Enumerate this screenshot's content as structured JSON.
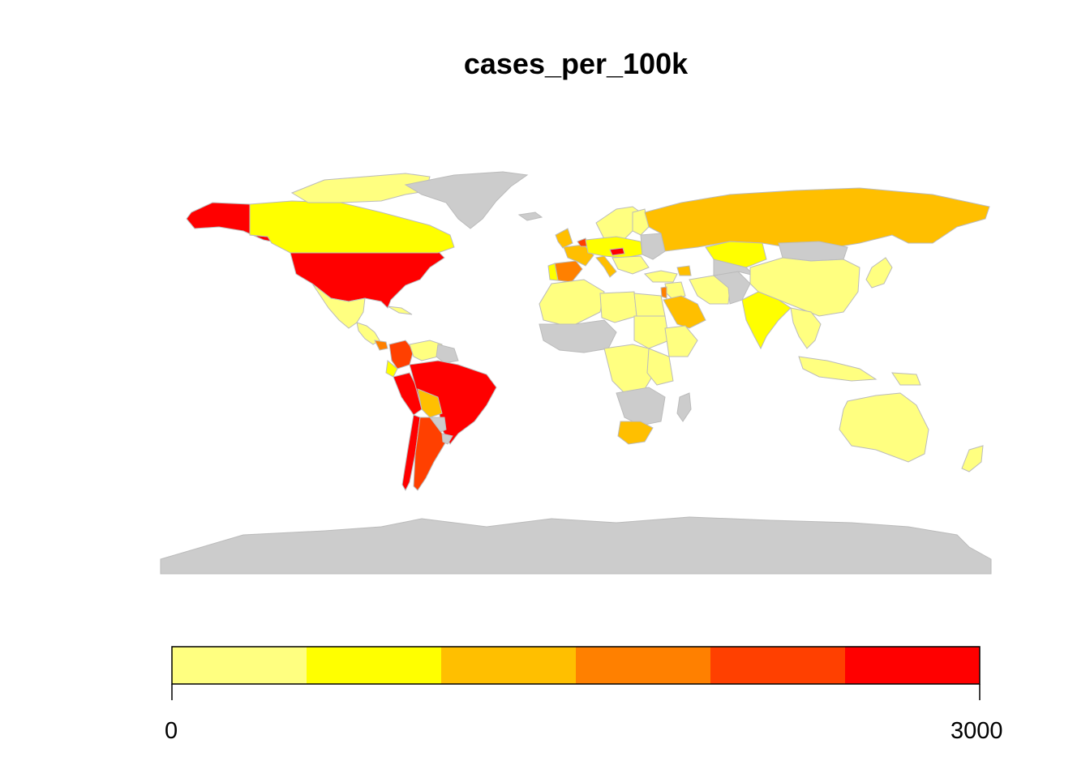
{
  "chart_data": {
    "type": "choropleth",
    "title": "cases_per_100k",
    "no_data_color": "#cccccc",
    "border_color": "#bbbbbb",
    "legend": {
      "placement": "bottom",
      "min_label": "0",
      "max_label": "3000",
      "range": [
        0,
        3000
      ],
      "bins": [
        {
          "from": 0,
          "to": 500,
          "color": "#ffff80"
        },
        {
          "from": 500,
          "to": 1000,
          "color": "#ffff00"
        },
        {
          "from": 1000,
          "to": 1500,
          "color": "#ffbf00"
        },
        {
          "from": 1500,
          "to": 2000,
          "color": "#ff8000"
        },
        {
          "from": 2000,
          "to": 2500,
          "color": "#ff4000"
        },
        {
          "from": 2500,
          "to": 3000,
          "color": "#ff0000"
        }
      ]
    },
    "regions": [
      {
        "id": "alaska",
        "bin": 5
      },
      {
        "id": "usa",
        "bin": 5
      },
      {
        "id": "canada",
        "bin": 1
      },
      {
        "id": "canada-arctic-islands",
        "bin": 0
      },
      {
        "id": "greenland",
        "bin": null
      },
      {
        "id": "mexico",
        "bin": 0
      },
      {
        "id": "central-america",
        "bin": 0
      },
      {
        "id": "panama",
        "bin": 3
      },
      {
        "id": "cuba",
        "bin": 0
      },
      {
        "id": "colombia",
        "bin": 4
      },
      {
        "id": "venezuela",
        "bin": 0
      },
      {
        "id": "guyana-suriname",
        "bin": null
      },
      {
        "id": "ecuador",
        "bin": 1
      },
      {
        "id": "peru",
        "bin": 5
      },
      {
        "id": "brazil",
        "bin": 5
      },
      {
        "id": "bolivia",
        "bin": 2
      },
      {
        "id": "paraguay",
        "bin": null
      },
      {
        "id": "chile",
        "bin": 5
      },
      {
        "id": "argentina",
        "bin": 4
      },
      {
        "id": "uruguay",
        "bin": null
      },
      {
        "id": "iceland",
        "bin": null
      },
      {
        "id": "uk-ireland",
        "bin": 2
      },
      {
        "id": "scandinavia",
        "bin": 0
      },
      {
        "id": "finland",
        "bin": 0
      },
      {
        "id": "spain",
        "bin": 3
      },
      {
        "id": "portugal",
        "bin": 1
      },
      {
        "id": "france",
        "bin": 2
      },
      {
        "id": "benelux",
        "bin": 4
      },
      {
        "id": "central-europe",
        "bin": 1
      },
      {
        "id": "czechia",
        "bin": 5
      },
      {
        "id": "italy",
        "bin": 2
      },
      {
        "id": "balkans",
        "bin": 0
      },
      {
        "id": "eastern-europe",
        "bin": null
      },
      {
        "id": "russia",
        "bin": 2
      },
      {
        "id": "kazakhstan",
        "bin": 1
      },
      {
        "id": "turkey",
        "bin": 0
      },
      {
        "id": "caucasus",
        "bin": 2
      },
      {
        "id": "middle-east",
        "bin": 0
      },
      {
        "id": "israel",
        "bin": 3
      },
      {
        "id": "saudi-arabia",
        "bin": 2
      },
      {
        "id": "iran",
        "bin": 0
      },
      {
        "id": "afghanistan-pakistan",
        "bin": null
      },
      {
        "id": "central-asia",
        "bin": null
      },
      {
        "id": "mongolia",
        "bin": null
      },
      {
        "id": "china",
        "bin": 0
      },
      {
        "id": "india",
        "bin": 1
      },
      {
        "id": "southeast-asia",
        "bin": 0
      },
      {
        "id": "japan-korea",
        "bin": 0
      },
      {
        "id": "indonesia-philippines",
        "bin": 0
      },
      {
        "id": "png",
        "bin": 0
      },
      {
        "id": "australia",
        "bin": 0
      },
      {
        "id": "new-zealand",
        "bin": 0
      },
      {
        "id": "northwest-africa",
        "bin": 0
      },
      {
        "id": "sahel-west-africa",
        "bin": null
      },
      {
        "id": "libya",
        "bin": 0
      },
      {
        "id": "egypt",
        "bin": 0
      },
      {
        "id": "sudan-region",
        "bin": 0
      },
      {
        "id": "ethiopia-horn",
        "bin": 0
      },
      {
        "id": "central-africa",
        "bin": 0
      },
      {
        "id": "east-africa",
        "bin": 0
      },
      {
        "id": "southern-africa",
        "bin": null
      },
      {
        "id": "south-africa",
        "bin": 2
      },
      {
        "id": "madagascar",
        "bin": null
      },
      {
        "id": "antarctica",
        "bin": null
      }
    ]
  }
}
